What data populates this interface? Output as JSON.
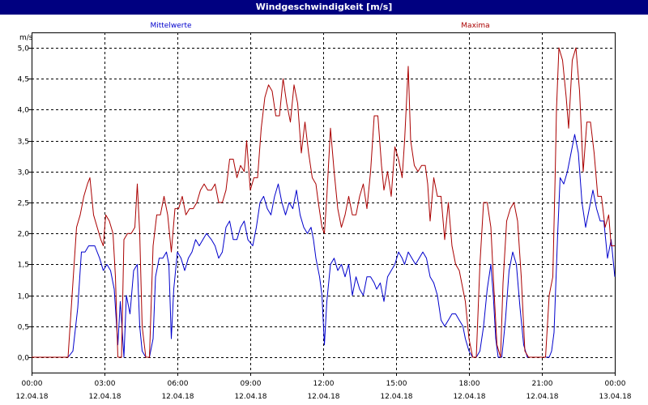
{
  "window": {
    "title": "Windgeschwindigkeit [m/s]"
  },
  "chart_data": {
    "type": "line",
    "title": "Windgeschwindigkeit [m/s]",
    "ylabel": "m/s",
    "ylim": [
      0,
      5
    ],
    "yticks": [
      "0,0",
      "0,5",
      "1,0",
      "1,5",
      "2,0",
      "2,5",
      "3,0",
      "3,5",
      "4,0",
      "4,5",
      "5,0"
    ],
    "xlim_hours": [
      0,
      24
    ],
    "xticks": [
      {
        "h": 0,
        "time": "00:00",
        "date": "12.04.18"
      },
      {
        "h": 3,
        "time": "03:00",
        "date": "12.04.18"
      },
      {
        "h": 6,
        "time": "06:00",
        "date": "12.04.18"
      },
      {
        "h": 9,
        "time": "09:00",
        "date": "12.04.18"
      },
      {
        "h": 12,
        "time": "12:00",
        "date": "12.04.18"
      },
      {
        "h": 15,
        "time": "15:00",
        "date": "12.04.18"
      },
      {
        "h": 18,
        "time": "18:00",
        "date": "12.04.18"
      },
      {
        "h": 21,
        "time": "21:00",
        "date": "12.04.18"
      },
      {
        "h": 24,
        "time": "00:00",
        "date": "13.04.18"
      }
    ],
    "grid": true,
    "series": [
      {
        "name": "Mittelwerte",
        "color": "#0000cc",
        "points": [
          [
            0,
            0
          ],
          [
            1.5,
            0
          ],
          [
            1.7,
            0.1
          ],
          [
            1.9,
            0.8
          ],
          [
            2.05,
            1.7
          ],
          [
            2.2,
            1.7
          ],
          [
            2.35,
            1.8
          ],
          [
            2.6,
            1.8
          ],
          [
            2.8,
            1.6
          ],
          [
            2.95,
            1.4
          ],
          [
            3.1,
            1.5
          ],
          [
            3.25,
            1.4
          ],
          [
            3.4,
            1.1
          ],
          [
            3.55,
            0.2
          ],
          [
            3.65,
            0.9
          ],
          [
            3.8,
            0
          ],
          [
            3.9,
            1.0
          ],
          [
            4.05,
            0.7
          ],
          [
            4.2,
            1.4
          ],
          [
            4.35,
            1.5
          ],
          [
            4.45,
            0.5
          ],
          [
            4.55,
            0.1
          ],
          [
            4.7,
            0
          ],
          [
            4.85,
            0
          ],
          [
            5.0,
            0.3
          ],
          [
            5.1,
            1.3
          ],
          [
            5.25,
            1.6
          ],
          [
            5.4,
            1.6
          ],
          [
            5.55,
            1.7
          ],
          [
            5.65,
            1.5
          ],
          [
            5.75,
            0.3
          ],
          [
            5.85,
            1.1
          ],
          [
            6.0,
            1.7
          ],
          [
            6.15,
            1.6
          ],
          [
            6.3,
            1.4
          ],
          [
            6.45,
            1.6
          ],
          [
            6.6,
            1.7
          ],
          [
            6.75,
            1.9
          ],
          [
            6.9,
            1.8
          ],
          [
            7.05,
            1.9
          ],
          [
            7.2,
            2.0
          ],
          [
            7.4,
            1.9
          ],
          [
            7.55,
            1.8
          ],
          [
            7.7,
            1.6
          ],
          [
            7.85,
            1.7
          ],
          [
            8.0,
            2.1
          ],
          [
            8.15,
            2.2
          ],
          [
            8.3,
            1.9
          ],
          [
            8.45,
            1.9
          ],
          [
            8.6,
            2.1
          ],
          [
            8.75,
            2.2
          ],
          [
            8.9,
            1.9
          ],
          [
            9.1,
            1.8
          ],
          [
            9.25,
            2.1
          ],
          [
            9.4,
            2.5
          ],
          [
            9.55,
            2.6
          ],
          [
            9.7,
            2.4
          ],
          [
            9.85,
            2.3
          ],
          [
            10.0,
            2.6
          ],
          [
            10.15,
            2.8
          ],
          [
            10.3,
            2.5
          ],
          [
            10.45,
            2.3
          ],
          [
            10.6,
            2.5
          ],
          [
            10.75,
            2.4
          ],
          [
            10.9,
            2.7
          ],
          [
            11.05,
            2.3
          ],
          [
            11.2,
            2.1
          ],
          [
            11.35,
            2.0
          ],
          [
            11.5,
            2.1
          ],
          [
            11.6,
            1.9
          ],
          [
            11.7,
            1.6
          ],
          [
            11.85,
            1.3
          ],
          [
            11.95,
            1.0
          ],
          [
            12.05,
            0.2
          ],
          [
            12.15,
            0.9
          ],
          [
            12.3,
            1.5
          ],
          [
            12.45,
            1.6
          ],
          [
            12.6,
            1.4
          ],
          [
            12.75,
            1.5
          ],
          [
            12.9,
            1.3
          ],
          [
            13.05,
            1.5
          ],
          [
            13.2,
            1.0
          ],
          [
            13.35,
            1.3
          ],
          [
            13.5,
            1.1
          ],
          [
            13.65,
            1.0
          ],
          [
            13.8,
            1.3
          ],
          [
            13.95,
            1.3
          ],
          [
            14.1,
            1.2
          ],
          [
            14.2,
            1.1
          ],
          [
            14.35,
            1.2
          ],
          [
            14.5,
            0.9
          ],
          [
            14.65,
            1.3
          ],
          [
            14.8,
            1.4
          ],
          [
            14.95,
            1.5
          ],
          [
            15.1,
            1.7
          ],
          [
            15.25,
            1.6
          ],
          [
            15.35,
            1.5
          ],
          [
            15.5,
            1.7
          ],
          [
            15.65,
            1.6
          ],
          [
            15.8,
            1.5
          ],
          [
            15.95,
            1.6
          ],
          [
            16.1,
            1.7
          ],
          [
            16.25,
            1.6
          ],
          [
            16.4,
            1.3
          ],
          [
            16.55,
            1.2
          ],
          [
            16.7,
            1.0
          ],
          [
            16.85,
            0.6
          ],
          [
            17.0,
            0.5
          ],
          [
            17.15,
            0.6
          ],
          [
            17.3,
            0.7
          ],
          [
            17.45,
            0.7
          ],
          [
            17.6,
            0.6
          ],
          [
            17.75,
            0.5
          ],
          [
            17.85,
            0.3
          ],
          [
            18.0,
            0.1
          ],
          [
            18.15,
            0
          ],
          [
            18.3,
            0
          ],
          [
            18.45,
            0.1
          ],
          [
            18.6,
            0.5
          ],
          [
            18.75,
            1.1
          ],
          [
            18.9,
            1.5
          ],
          [
            19.0,
            1.0
          ],
          [
            19.1,
            0.3
          ],
          [
            19.2,
            0
          ],
          [
            19.35,
            0
          ],
          [
            19.5,
            0.6
          ],
          [
            19.65,
            1.4
          ],
          [
            19.8,
            1.7
          ],
          [
            19.95,
            1.5
          ],
          [
            20.1,
            0.8
          ],
          [
            20.25,
            0.2
          ],
          [
            20.4,
            0
          ],
          [
            21.3,
            0
          ],
          [
            21.4,
            0.1
          ],
          [
            21.5,
            0.4
          ],
          [
            21.65,
            2.0
          ],
          [
            21.75,
            2.9
          ],
          [
            21.9,
            2.8
          ],
          [
            22.05,
            3.0
          ],
          [
            22.2,
            3.3
          ],
          [
            22.35,
            3.6
          ],
          [
            22.5,
            3.3
          ],
          [
            22.65,
            2.5
          ],
          [
            22.8,
            2.1
          ],
          [
            22.95,
            2.4
          ],
          [
            23.1,
            2.7
          ],
          [
            23.25,
            2.4
          ],
          [
            23.4,
            2.2
          ],
          [
            23.55,
            2.2
          ],
          [
            23.7,
            1.6
          ],
          [
            23.85,
            1.9
          ],
          [
            24.0,
            1.3
          ]
        ]
      },
      {
        "name": "Maxima",
        "color": "#aa0000",
        "points": [
          [
            0,
            0
          ],
          [
            1.5,
            0
          ],
          [
            1.7,
            1.2
          ],
          [
            1.85,
            2.1
          ],
          [
            2.0,
            2.3
          ],
          [
            2.15,
            2.6
          ],
          [
            2.3,
            2.8
          ],
          [
            2.4,
            2.9
          ],
          [
            2.55,
            2.3
          ],
          [
            2.7,
            2.1
          ],
          [
            2.85,
            1.9
          ],
          [
            2.95,
            1.8
          ],
          [
            3.05,
            2.3
          ],
          [
            3.2,
            2.2
          ],
          [
            3.35,
            2.0
          ],
          [
            3.45,
            1.3
          ],
          [
            3.55,
            0
          ],
          [
            3.7,
            0
          ],
          [
            3.8,
            1.9
          ],
          [
            3.95,
            2.0
          ],
          [
            4.1,
            2.0
          ],
          [
            4.25,
            2.1
          ],
          [
            4.35,
            2.8
          ],
          [
            4.45,
            2.0
          ],
          [
            4.55,
            0.5
          ],
          [
            4.7,
            0
          ],
          [
            4.85,
            0
          ],
          [
            5.0,
            1.8
          ],
          [
            5.15,
            2.3
          ],
          [
            5.3,
            2.3
          ],
          [
            5.45,
            2.6
          ],
          [
            5.6,
            2.3
          ],
          [
            5.75,
            1.7
          ],
          [
            5.9,
            2.4
          ],
          [
            6.05,
            2.4
          ],
          [
            6.2,
            2.6
          ],
          [
            6.35,
            2.3
          ],
          [
            6.5,
            2.4
          ],
          [
            6.65,
            2.4
          ],
          [
            6.8,
            2.5
          ],
          [
            6.95,
            2.7
          ],
          [
            7.1,
            2.8
          ],
          [
            7.25,
            2.7
          ],
          [
            7.4,
            2.7
          ],
          [
            7.55,
            2.8
          ],
          [
            7.7,
            2.5
          ],
          [
            7.85,
            2.5
          ],
          [
            8.0,
            2.7
          ],
          [
            8.15,
            3.2
          ],
          [
            8.3,
            3.2
          ],
          [
            8.45,
            2.9
          ],
          [
            8.6,
            3.1
          ],
          [
            8.75,
            3.0
          ],
          [
            8.85,
            3.5
          ],
          [
            9.0,
            2.7
          ],
          [
            9.15,
            2.9
          ],
          [
            9.3,
            2.9
          ],
          [
            9.45,
            3.7
          ],
          [
            9.6,
            4.2
          ],
          [
            9.75,
            4.4
          ],
          [
            9.9,
            4.3
          ],
          [
            10.05,
            3.9
          ],
          [
            10.2,
            3.9
          ],
          [
            10.35,
            4.5
          ],
          [
            10.5,
            4.1
          ],
          [
            10.65,
            3.8
          ],
          [
            10.8,
            4.4
          ],
          [
            10.95,
            4.1
          ],
          [
            11.1,
            3.3
          ],
          [
            11.25,
            3.8
          ],
          [
            11.4,
            3.3
          ],
          [
            11.55,
            2.9
          ],
          [
            11.7,
            2.8
          ],
          [
            11.8,
            2.5
          ],
          [
            11.95,
            2.1
          ],
          [
            12.05,
            2.0
          ],
          [
            12.15,
            2.6
          ],
          [
            12.3,
            3.7
          ],
          [
            12.45,
            3.0
          ],
          [
            12.6,
            2.4
          ],
          [
            12.75,
            2.1
          ],
          [
            12.9,
            2.3
          ],
          [
            13.05,
            2.6
          ],
          [
            13.2,
            2.3
          ],
          [
            13.35,
            2.3
          ],
          [
            13.5,
            2.6
          ],
          [
            13.65,
            2.8
          ],
          [
            13.8,
            2.4
          ],
          [
            13.95,
            3.0
          ],
          [
            14.1,
            3.9
          ],
          [
            14.25,
            3.9
          ],
          [
            14.4,
            3.1
          ],
          [
            14.5,
            2.7
          ],
          [
            14.65,
            3.0
          ],
          [
            14.8,
            2.6
          ],
          [
            14.95,
            3.4
          ],
          [
            15.1,
            3.2
          ],
          [
            15.25,
            2.9
          ],
          [
            15.35,
            3.5
          ],
          [
            15.5,
            4.7
          ],
          [
            15.6,
            3.5
          ],
          [
            15.75,
            3.1
          ],
          [
            15.9,
            3.0
          ],
          [
            16.05,
            3.1
          ],
          [
            16.2,
            3.1
          ],
          [
            16.3,
            2.8
          ],
          [
            16.4,
            2.2
          ],
          [
            16.55,
            2.9
          ],
          [
            16.7,
            2.6
          ],
          [
            16.85,
            2.6
          ],
          [
            17.0,
            1.9
          ],
          [
            17.15,
            2.5
          ],
          [
            17.3,
            1.8
          ],
          [
            17.45,
            1.5
          ],
          [
            17.6,
            1.4
          ],
          [
            17.75,
            1.1
          ],
          [
            17.85,
            0.9
          ],
          [
            18.0,
            0.3
          ],
          [
            18.15,
            0
          ],
          [
            18.3,
            0
          ],
          [
            18.45,
            1.5
          ],
          [
            18.6,
            2.5
          ],
          [
            18.75,
            2.5
          ],
          [
            18.9,
            2.1
          ],
          [
            19.0,
            1.3
          ],
          [
            19.15,
            0.2
          ],
          [
            19.3,
            0
          ],
          [
            19.4,
            1.2
          ],
          [
            19.55,
            2.2
          ],
          [
            19.7,
            2.4
          ],
          [
            19.85,
            2.5
          ],
          [
            20.0,
            2.2
          ],
          [
            20.15,
            1.3
          ],
          [
            20.3,
            0.1
          ],
          [
            20.45,
            0
          ],
          [
            21.0,
            0
          ],
          [
            21.15,
            0
          ],
          [
            21.3,
            1.0
          ],
          [
            21.45,
            1.3
          ],
          [
            21.55,
            3.0
          ],
          [
            21.6,
            4.0
          ],
          [
            21.7,
            5.0
          ],
          [
            21.85,
            4.8
          ],
          [
            22.0,
            4.2
          ],
          [
            22.1,
            3.7
          ],
          [
            22.25,
            4.8
          ],
          [
            22.4,
            5.0
          ],
          [
            22.55,
            4.3
          ],
          [
            22.7,
            3.0
          ],
          [
            22.85,
            3.8
          ],
          [
            23.0,
            3.8
          ],
          [
            23.15,
            3.3
          ],
          [
            23.3,
            2.6
          ],
          [
            23.45,
            2.6
          ],
          [
            23.6,
            2.1
          ],
          [
            23.75,
            2.3
          ],
          [
            23.85,
            1.8
          ],
          [
            24.0,
            1.8
          ]
        ]
      }
    ]
  }
}
